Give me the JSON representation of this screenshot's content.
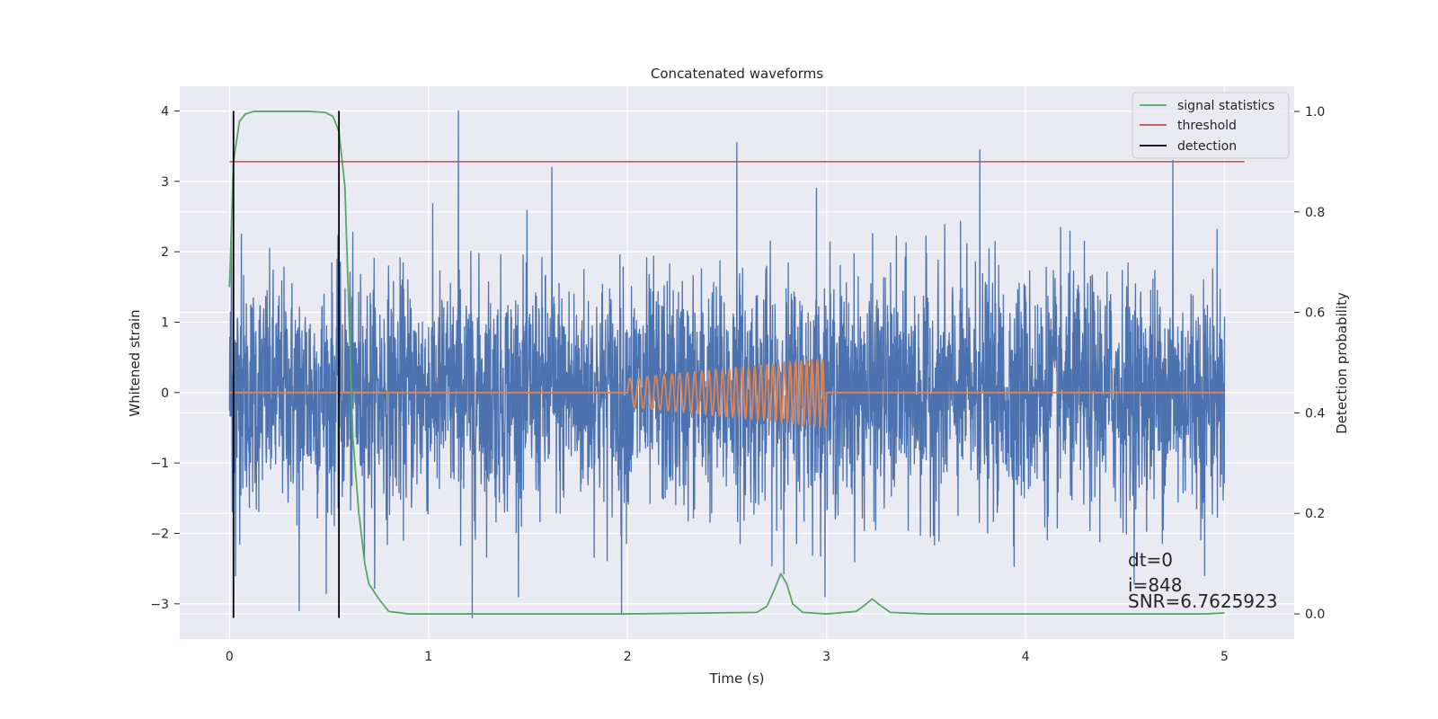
{
  "chart_data": {
    "type": "line",
    "title": "Concatenated waveforms",
    "xlabel": "Time (s)",
    "ylabel": "Whitened strain",
    "y2label": "Detection probability",
    "xlim": [
      -0.25,
      5.35
    ],
    "ylim": [
      -3.5,
      4.35
    ],
    "y2lim": [
      -0.05,
      1.05
    ],
    "x_ticks": [
      0,
      1,
      2,
      3,
      4,
      5
    ],
    "y_ticks": [
      -3,
      -2,
      -1,
      0,
      1,
      2,
      3,
      4
    ],
    "y2_ticks": [
      0.0,
      0.2,
      0.4,
      0.6,
      0.8,
      1.0
    ],
    "y2_tick_labels": [
      "0.0",
      "0.2",
      "0.4",
      "0.6",
      "0.8",
      "1.0"
    ],
    "grid": true,
    "legend_position": "top-right",
    "colors": {
      "strain": "#4c72b0",
      "injected_waveform": "#dd8452",
      "signal_statistics": "#55a868",
      "threshold": "#c44e52",
      "detection": "#000000",
      "plot_background": "#eaeaf2",
      "grid": "#ffffff"
    },
    "series": [
      {
        "name": "signal statistics",
        "axis": "right",
        "x": [
          0,
          0.02,
          0.05,
          0.08,
          0.12,
          0.2,
          0.3,
          0.4,
          0.48,
          0.52,
          0.55,
          0.58,
          0.6,
          0.62,
          0.65,
          0.68,
          0.7,
          0.75,
          0.8,
          0.9,
          1.0,
          2.0,
          2.65,
          2.7,
          2.74,
          2.77,
          2.8,
          2.83,
          2.88,
          3.0,
          3.15,
          3.2,
          3.23,
          3.26,
          3.32,
          3.5,
          4.0,
          4.9,
          5.0
        ],
        "y": [
          0.65,
          0.9,
          0.98,
          0.995,
          1.0,
          1.0,
          1.0,
          1.0,
          0.998,
          0.99,
          0.96,
          0.85,
          0.6,
          0.35,
          0.2,
          0.1,
          0.06,
          0.03,
          0.005,
          0.0,
          0.0,
          0.0,
          0.003,
          0.015,
          0.05,
          0.08,
          0.06,
          0.02,
          0.003,
          0.0,
          0.005,
          0.02,
          0.03,
          0.02,
          0.003,
          0.0,
          0.0,
          0.0,
          0.002
        ]
      },
      {
        "name": "threshold",
        "axis": "right",
        "x": [
          0,
          5.1
        ],
        "y": [
          0.9,
          0.9
        ]
      },
      {
        "name": "detection",
        "axis": "left",
        "x_positions": [
          0.02,
          0.55
        ],
        "y_range": [
          -3.2,
          4.0
        ]
      },
      {
        "name": "",
        "role": "whitened strain noise",
        "axis": "left",
        "x_range": [
          0,
          5
        ],
        "typical_amplitude": 1.0,
        "peak_values": [
          {
            "x": 0.01,
            "y": 2.35
          },
          {
            "x": 0.03,
            "y": -2.6
          },
          {
            "x": 0.06,
            "y": 2.25
          },
          {
            "x": 0.35,
            "y": -3.1
          },
          {
            "x": 1.15,
            "y": 4.0
          },
          {
            "x": 1.22,
            "y": -3.2
          },
          {
            "x": 1.62,
            "y": 3.2
          },
          {
            "x": 1.97,
            "y": -3.15
          },
          {
            "x": 2.55,
            "y": 3.55
          },
          {
            "x": 2.95,
            "y": 2.9
          },
          {
            "x": 3.77,
            "y": 3.45
          },
          {
            "x": 4.74,
            "y": 3.3
          },
          {
            "x": 4.9,
            "y": -2.6
          }
        ]
      },
      {
        "name": "",
        "role": "injected waveform",
        "axis": "left",
        "x_range": [
          2.0,
          3.0
        ],
        "amplitude_start": 0.2,
        "amplitude_end": 0.48,
        "cycles": 30
      }
    ],
    "legend": [
      "signal statistics",
      "threshold",
      "detection"
    ],
    "annotations": [
      "dt=0",
      "i=848",
      "SNR=6.7625923"
    ]
  }
}
